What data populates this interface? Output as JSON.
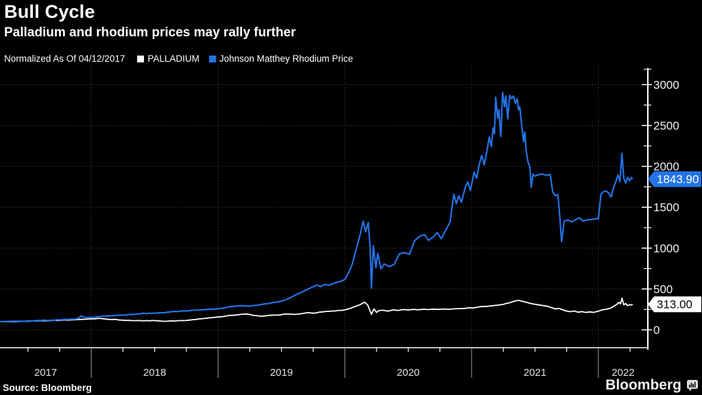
{
  "header": {
    "title": "Bull Cycle",
    "subtitle": "Palladium and rhodium prices may rally further"
  },
  "legend": {
    "note": "Normalized As Of 04/12/2017",
    "items": [
      {
        "label": "PALLADIUM",
        "color": "#ffffff"
      },
      {
        "label": "Johnson Matthey Rhodium Price",
        "color": "#2373e6"
      }
    ]
  },
  "footer": {
    "source": "Source: Bloomberg",
    "logo": "Bloomberg"
  },
  "colors": {
    "background": "#000000",
    "accent_blue": "#2373e6",
    "grid": "#4f4f4f",
    "axis": "#ffffff",
    "year_separator": "#9f9f9f"
  },
  "chart_data": {
    "type": "line",
    "title": "Bull Cycle",
    "subtitle": "Palladium and rhodium prices may rally further",
    "note": "Normalized As Of 04/12/2017",
    "grid": "dotted",
    "legend_position": "top",
    "x_axis": {
      "year_labels": [
        "2017",
        "2018",
        "2019",
        "2020",
        "2021",
        "2022"
      ],
      "data_start": 2017.28,
      "data_end": 2022.27,
      "axis_end": 2022.39
    },
    "y_axis": {
      "side": "right",
      "ylim": [
        0,
        3200
      ],
      "major_ticks": [
        0,
        500,
        1000,
        1500,
        2000,
        2500,
        3000
      ],
      "minor_ticks": [
        250,
        750,
        1250,
        1750,
        2250,
        2750,
        3200
      ]
    },
    "series": [
      {
        "name": "PALLADIUM",
        "color": "#ffffff",
        "last_value_label": "313.00",
        "last_value": 313.0,
        "points": [
          [
            2017.28,
            100
          ],
          [
            2017.36,
            102
          ],
          [
            2017.44,
            104
          ],
          [
            2017.52,
            107
          ],
          [
            2017.6,
            110
          ],
          [
            2017.68,
            113
          ],
          [
            2017.76,
            117
          ],
          [
            2017.84,
            122
          ],
          [
            2017.92,
            128
          ],
          [
            2018,
            134
          ],
          [
            2018.05,
            139
          ],
          [
            2018.1,
            134
          ],
          [
            2018.16,
            127
          ],
          [
            2018.22,
            121
          ],
          [
            2018.3,
            117
          ],
          [
            2018.38,
            114
          ],
          [
            2018.46,
            111
          ],
          [
            2018.54,
            109
          ],
          [
            2018.6,
            106
          ],
          [
            2018.66,
            108
          ],
          [
            2018.72,
            113
          ],
          [
            2018.8,
            125
          ],
          [
            2018.88,
            138
          ],
          [
            2018.94,
            148
          ],
          [
            2019,
            158
          ],
          [
            2019.06,
            168
          ],
          [
            2019.12,
            178
          ],
          [
            2019.18,
            190
          ],
          [
            2019.23,
            194
          ],
          [
            2019.28,
            176
          ],
          [
            2019.33,
            168
          ],
          [
            2019.38,
            172
          ],
          [
            2019.44,
            180
          ],
          [
            2019.5,
            186
          ],
          [
            2019.55,
            193
          ],
          [
            2019.6,
            189
          ],
          [
            2019.65,
            196
          ],
          [
            2019.7,
            210
          ],
          [
            2019.75,
            204
          ],
          [
            2019.8,
            217
          ],
          [
            2019.85,
            226
          ],
          [
            2019.9,
            231
          ],
          [
            2019.95,
            238
          ],
          [
            2020,
            244
          ],
          [
            2020.04,
            262
          ],
          [
            2020.08,
            285
          ],
          [
            2020.12,
            308
          ],
          [
            2020.155,
            338
          ],
          [
            2020.18,
            305
          ],
          [
            2020.21,
            190
          ],
          [
            2020.23,
            256
          ],
          [
            2020.25,
            214
          ],
          [
            2020.27,
            236
          ],
          [
            2020.3,
            240
          ],
          [
            2020.34,
            229
          ],
          [
            2020.38,
            244
          ],
          [
            2020.42,
            237
          ],
          [
            2020.46,
            248
          ],
          [
            2020.5,
            243
          ],
          [
            2020.54,
            250
          ],
          [
            2020.58,
            246
          ],
          [
            2020.62,
            252
          ],
          [
            2020.66,
            248
          ],
          [
            2020.7,
            253
          ],
          [
            2020.74,
            250
          ],
          [
            2020.78,
            255
          ],
          [
            2020.82,
            252
          ],
          [
            2020.86,
            257
          ],
          [
            2020.9,
            260
          ],
          [
            2020.95,
            263
          ],
          [
            2021,
            268
          ],
          [
            2021.05,
            279
          ],
          [
            2021.1,
            287
          ],
          [
            2021.15,
            294
          ],
          [
            2021.2,
            301
          ],
          [
            2021.25,
            312
          ],
          [
            2021.3,
            331
          ],
          [
            2021.34,
            352
          ],
          [
            2021.37,
            361
          ],
          [
            2021.4,
            349
          ],
          [
            2021.44,
            333
          ],
          [
            2021.48,
            318
          ],
          [
            2021.52,
            308
          ],
          [
            2021.56,
            298
          ],
          [
            2021.6,
            288
          ],
          [
            2021.63,
            272
          ],
          [
            2021.66,
            257
          ],
          [
            2021.69,
            263
          ],
          [
            2021.72,
            243
          ],
          [
            2021.75,
            230
          ],
          [
            2021.78,
            222
          ],
          [
            2021.81,
            231
          ],
          [
            2021.84,
            216
          ],
          [
            2021.87,
            223
          ],
          [
            2021.9,
            213
          ],
          [
            2021.93,
            220
          ],
          [
            2021.96,
            214
          ],
          [
            2022,
            229
          ],
          [
            2022.03,
            244
          ],
          [
            2022.06,
            252
          ],
          [
            2022.09,
            262
          ],
          [
            2022.12,
            287
          ],
          [
            2022.15,
            316
          ],
          [
            2022.163,
            337
          ],
          [
            2022.175,
            318
          ],
          [
            2022.186,
            388
          ],
          [
            2022.2,
            306
          ],
          [
            2022.215,
            322
          ],
          [
            2022.23,
            297
          ],
          [
            2022.245,
            308
          ],
          [
            2022.26,
            303
          ],
          [
            2022.27,
            313
          ]
        ]
      },
      {
        "name": "Johnson Matthey Rhodium Price",
        "color": "#2373e6",
        "last_value_label": "1843.90",
        "last_value": 1843.9,
        "points": [
          [
            2017.28,
            100
          ],
          [
            2017.36,
            104
          ],
          [
            2017.44,
            106
          ],
          [
            2017.52,
            109
          ],
          [
            2017.6,
            113
          ],
          [
            2017.68,
            117
          ],
          [
            2017.76,
            122
          ],
          [
            2017.84,
            130
          ],
          [
            2017.89,
            138
          ],
          [
            2017.92,
            170
          ],
          [
            2017.95,
            150
          ],
          [
            2018,
            152
          ],
          [
            2018.06,
            162
          ],
          [
            2018.12,
            170
          ],
          [
            2018.18,
            175
          ],
          [
            2018.24,
            180
          ],
          [
            2018.3,
            187
          ],
          [
            2018.38,
            196
          ],
          [
            2018.46,
            203
          ],
          [
            2018.54,
            210
          ],
          [
            2018.62,
            218
          ],
          [
            2018.7,
            227
          ],
          [
            2018.78,
            236
          ],
          [
            2018.86,
            245
          ],
          [
            2018.94,
            252
          ],
          [
            2019,
            258
          ],
          [
            2019.06,
            272
          ],
          [
            2019.12,
            288
          ],
          [
            2019.18,
            296
          ],
          [
            2019.23,
            290
          ],
          [
            2019.28,
            298
          ],
          [
            2019.34,
            310
          ],
          [
            2019.4,
            322
          ],
          [
            2019.46,
            338
          ],
          [
            2019.52,
            360
          ],
          [
            2019.58,
            400
          ],
          [
            2019.64,
            448
          ],
          [
            2019.7,
            492
          ],
          [
            2019.74,
            520
          ],
          [
            2019.78,
            548
          ],
          [
            2019.81,
            528
          ],
          [
            2019.84,
            556
          ],
          [
            2019.88,
            545
          ],
          [
            2019.92,
            575
          ],
          [
            2019.96,
            590
          ],
          [
            2020,
            615
          ],
          [
            2020.03,
            700
          ],
          [
            2020.06,
            810
          ],
          [
            2020.09,
            990
          ],
          [
            2020.12,
            1160
          ],
          [
            2020.145,
            1330
          ],
          [
            2020.165,
            1200
          ],
          [
            2020.185,
            1315
          ],
          [
            2020.2,
            1000
          ],
          [
            2020.21,
            512
          ],
          [
            2020.225,
            1030
          ],
          [
            2020.245,
            760
          ],
          [
            2020.26,
            935
          ],
          [
            2020.285,
            745
          ],
          [
            2020.31,
            805
          ],
          [
            2020.35,
            775
          ],
          [
            2020.39,
            800
          ],
          [
            2020.43,
            930
          ],
          [
            2020.47,
            945
          ],
          [
            2020.51,
            925
          ],
          [
            2020.55,
            1090
          ],
          [
            2020.59,
            1145
          ],
          [
            2020.63,
            1165
          ],
          [
            2020.66,
            1095
          ],
          [
            2020.7,
            1140
          ],
          [
            2020.73,
            1190
          ],
          [
            2020.76,
            1115
          ],
          [
            2020.8,
            1230
          ],
          [
            2020.83,
            1320
          ],
          [
            2020.86,
            1660
          ],
          [
            2020.88,
            1545
          ],
          [
            2020.9,
            1640
          ],
          [
            2020.92,
            1560
          ],
          [
            2020.95,
            1745
          ],
          [
            2020.97,
            1810
          ],
          [
            2020.99,
            1705
          ],
          [
            2021.02,
            1930
          ],
          [
            2021.04,
            1855
          ],
          [
            2021.06,
            2020
          ],
          [
            2021.08,
            2135
          ],
          [
            2021.1,
            2020
          ],
          [
            2021.12,
            2180
          ],
          [
            2021.14,
            2360
          ],
          [
            2021.155,
            2245
          ],
          [
            2021.17,
            2470
          ],
          [
            2021.18,
            2400
          ],
          [
            2021.19,
            2845
          ],
          [
            2021.205,
            2590
          ],
          [
            2021.215,
            2695
          ],
          [
            2021.23,
            2365
          ],
          [
            2021.245,
            2905
          ],
          [
            2021.26,
            2730
          ],
          [
            2021.27,
            2860
          ],
          [
            2021.285,
            2580
          ],
          [
            2021.3,
            2870
          ],
          [
            2021.315,
            2830
          ],
          [
            2021.33,
            2860
          ],
          [
            2021.345,
            2770
          ],
          [
            2021.36,
            2830
          ],
          [
            2021.37,
            2690
          ],
          [
            2021.38,
            2730
          ],
          [
            2021.39,
            2570
          ],
          [
            2021.4,
            2440
          ],
          [
            2021.41,
            2300
          ],
          [
            2021.42,
            2420
          ],
          [
            2021.43,
            2190
          ],
          [
            2021.445,
            2050
          ],
          [
            2021.46,
            1995
          ],
          [
            2021.47,
            1745
          ],
          [
            2021.485,
            1905
          ],
          [
            2021.5,
            1880
          ],
          [
            2021.53,
            1900
          ],
          [
            2021.56,
            1905
          ],
          [
            2021.59,
            1890
          ],
          [
            2021.62,
            1900
          ],
          [
            2021.64,
            1685
          ],
          [
            2021.66,
            1640
          ],
          [
            2021.68,
            1655
          ],
          [
            2021.695,
            1395
          ],
          [
            2021.71,
            1080
          ],
          [
            2021.73,
            1330
          ],
          [
            2021.76,
            1345
          ],
          [
            2021.79,
            1320
          ],
          [
            2021.82,
            1350
          ],
          [
            2021.85,
            1372
          ],
          [
            2021.88,
            1330
          ],
          [
            2021.91,
            1345
          ],
          [
            2021.94,
            1350
          ],
          [
            2021.97,
            1356
          ],
          [
            2022,
            1362
          ],
          [
            2022.02,
            1660
          ],
          [
            2022.04,
            1690
          ],
          [
            2022.06,
            1700
          ],
          [
            2022.08,
            1675
          ],
          [
            2022.1,
            1625
          ],
          [
            2022.12,
            1745
          ],
          [
            2022.14,
            1825
          ],
          [
            2022.155,
            1895
          ],
          [
            2022.17,
            1815
          ],
          [
            2022.185,
            2160
          ],
          [
            2022.2,
            1855
          ],
          [
            2022.215,
            1795
          ],
          [
            2022.23,
            1865
          ],
          [
            2022.245,
            1825
          ],
          [
            2022.26,
            1865
          ],
          [
            2022.27,
            1843.9
          ]
        ]
      }
    ]
  }
}
